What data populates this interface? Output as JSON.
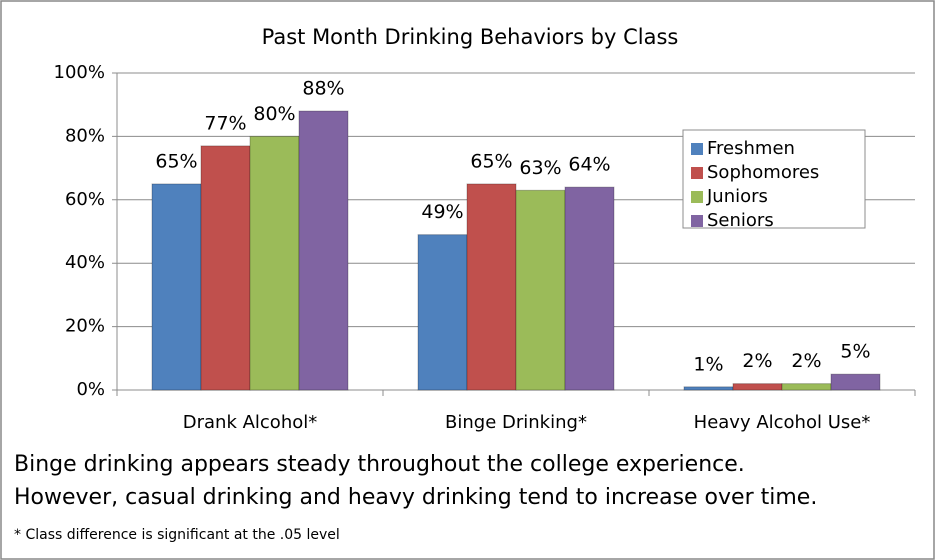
{
  "chart_data": {
    "type": "bar",
    "title": "Past Month Drinking Behaviors by Class",
    "categories": [
      "Drank Alcohol*",
      "Binge Drinking*",
      "Heavy Alcohol Use*"
    ],
    "series": [
      {
        "name": "Freshmen",
        "color": "#4f81bd",
        "values": [
          65,
          49,
          1
        ],
        "value_labels": [
          "65%",
          "49%",
          "1%"
        ]
      },
      {
        "name": "Sophomores",
        "color": "#c0504d",
        "values": [
          77,
          65,
          2
        ],
        "value_labels": [
          "77%",
          "65%",
          "2%"
        ]
      },
      {
        "name": "Juniors",
        "color": "#9bbb59",
        "values": [
          80,
          63,
          2
        ],
        "value_labels": [
          "80%",
          "63%",
          "2%"
        ]
      },
      {
        "name": "Seniors",
        "color": "#8064a2",
        "values": [
          88,
          64,
          5
        ],
        "value_labels": [
          "88%",
          "64%",
          "5%"
        ]
      }
    ],
    "ylim": [
      0,
      100
    ],
    "yticks": [
      {
        "value": 0,
        "label": "0%"
      },
      {
        "value": 20,
        "label": "20%"
      },
      {
        "value": 40,
        "label": "40%"
      },
      {
        "value": 60,
        "label": "60%"
      },
      {
        "value": 80,
        "label": "80%"
      },
      {
        "value": 100,
        "label": "100%"
      }
    ],
    "grid": true,
    "legend": "right",
    "caption": [
      "Binge drinking appears steady throughout the college experience.",
      "However, casual drinking and heavy drinking tend to increase over time."
    ],
    "footnote": "* Class difference is significant at the .05 level"
  }
}
